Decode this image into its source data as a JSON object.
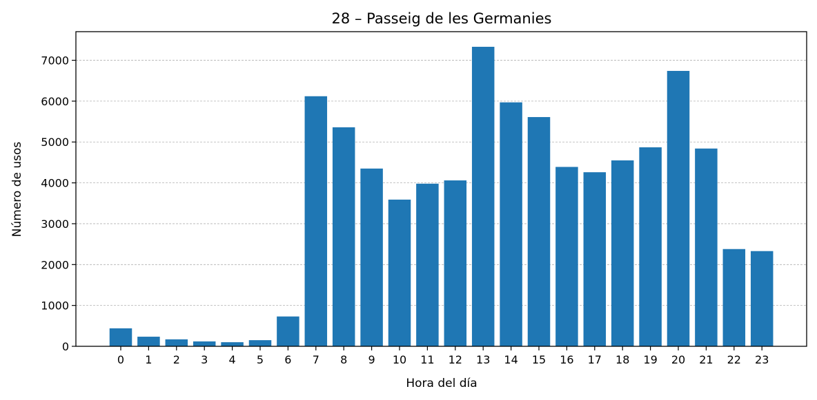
{
  "chart_data": {
    "type": "bar",
    "title": "28 – Passeig de les Germanies",
    "xlabel": "Hora del día",
    "ylabel": "Número de usos",
    "categories": [
      "0",
      "1",
      "2",
      "3",
      "4",
      "5",
      "6",
      "7",
      "8",
      "9",
      "10",
      "11",
      "12",
      "13",
      "14",
      "15",
      "16",
      "17",
      "18",
      "19",
      "20",
      "21",
      "22",
      "23"
    ],
    "values": [
      440,
      235,
      170,
      120,
      100,
      150,
      730,
      6120,
      5360,
      4350,
      3590,
      3980,
      4060,
      7330,
      5970,
      5610,
      4390,
      4260,
      4550,
      4870,
      6740,
      4840,
      2380,
      2330
    ],
    "ylim": [
      0,
      7700
    ],
    "yticks": [
      0,
      1000,
      2000,
      3000,
      4000,
      5000,
      6000,
      7000
    ],
    "grid": "y-dashed",
    "bar_color": "#1f77b4"
  }
}
